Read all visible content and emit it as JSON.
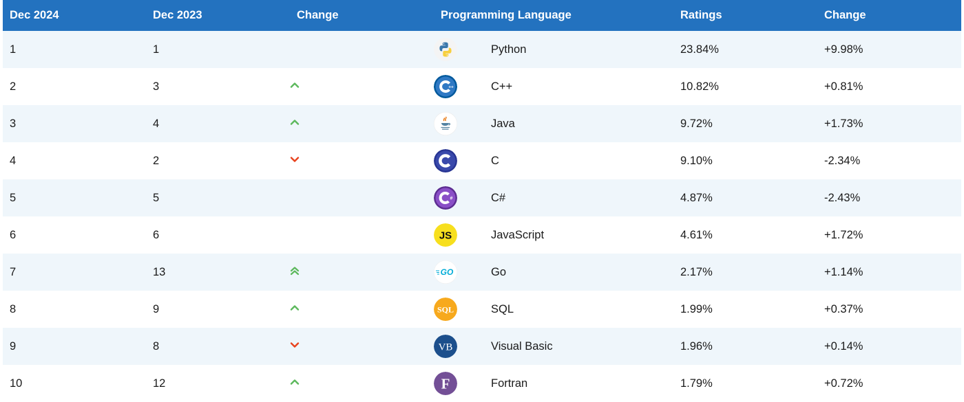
{
  "table": {
    "headers": [
      "Dec 2024",
      "Dec 2023",
      "Change",
      "Programming Language",
      "Ratings",
      "Change"
    ],
    "rows": [
      {
        "dec2024": "1",
        "dec2023": "1",
        "trend": "none",
        "logo": "python-logo",
        "language": "Python",
        "rating": "23.84%",
        "change": "+9.98%"
      },
      {
        "dec2024": "2",
        "dec2023": "3",
        "trend": "up",
        "logo": "cpp-logo",
        "language": "C++",
        "rating": "10.82%",
        "change": "+0.81%"
      },
      {
        "dec2024": "3",
        "dec2023": "4",
        "trend": "up",
        "logo": "java-logo",
        "language": "Java",
        "rating": "9.72%",
        "change": "+1.73%"
      },
      {
        "dec2024": "4",
        "dec2023": "2",
        "trend": "down",
        "logo": "c-logo",
        "language": "C",
        "rating": "9.10%",
        "change": "-2.34%"
      },
      {
        "dec2024": "5",
        "dec2023": "5",
        "trend": "none",
        "logo": "csharp-logo",
        "language": "C#",
        "rating": "4.87%",
        "change": "-2.43%"
      },
      {
        "dec2024": "6",
        "dec2023": "6",
        "trend": "none",
        "logo": "javascript-logo",
        "language": "JavaScript",
        "rating": "4.61%",
        "change": "+1.72%"
      },
      {
        "dec2024": "7",
        "dec2023": "13",
        "trend": "double-up",
        "logo": "go-logo",
        "language": "Go",
        "rating": "2.17%",
        "change": "+1.14%"
      },
      {
        "dec2024": "8",
        "dec2023": "9",
        "trend": "up",
        "logo": "sql-logo",
        "language": "SQL",
        "rating": "1.99%",
        "change": "+0.37%"
      },
      {
        "dec2024": "9",
        "dec2023": "8",
        "trend": "down",
        "logo": "visual-basic-logo",
        "language": "Visual Basic",
        "rating": "1.96%",
        "change": "+0.14%"
      },
      {
        "dec2024": "10",
        "dec2023": "12",
        "trend": "up",
        "logo": "fortran-logo",
        "language": "Fortran",
        "rating": "1.79%",
        "change": "+0.72%"
      }
    ]
  },
  "logo_text": {
    "javascript": "JS",
    "go": "GO",
    "sql": "SQL",
    "visual_basic": "VB",
    "fortran": "F"
  },
  "colors": {
    "header_bg": "#2372bf",
    "row_alt_bg": "#eff6fb",
    "arrow_up": "#5cb85c",
    "arrow_down": "#e8421d"
  }
}
